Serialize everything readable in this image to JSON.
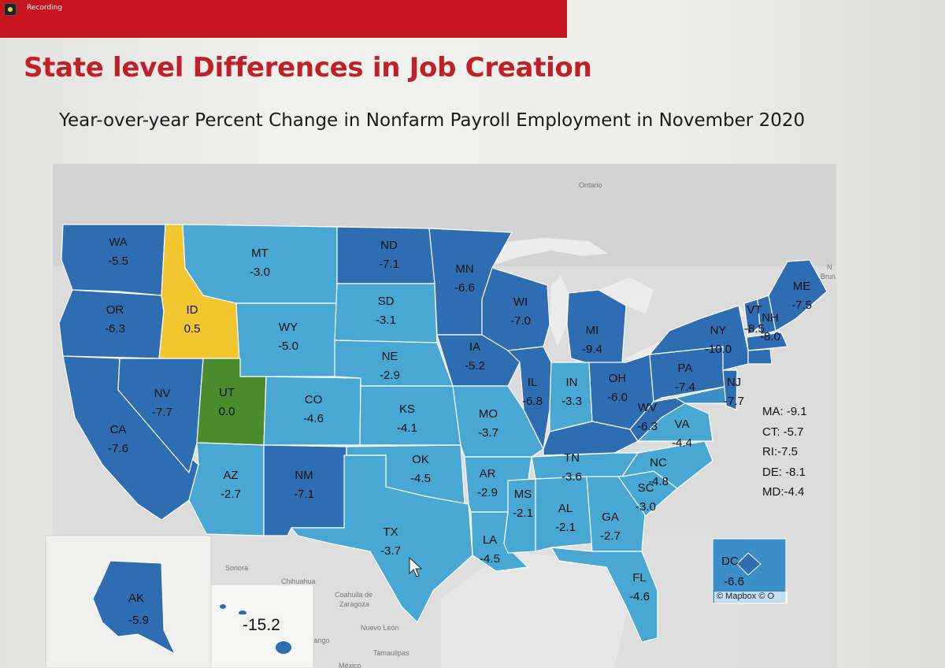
{
  "recording_label": "Recording",
  "title": "State level Differences in Job Creation",
  "subtitle": "Year-over-year Percent Change in Nonfarm Payroll Employment in November 2020",
  "colors": {
    "dark": "#2f6db3",
    "mid": "#3b8ec8",
    "light": "#48a7d3",
    "yellow": "#f2c62f",
    "green": "#4a8b2c",
    "border": "#ffffff"
  },
  "states": [
    {
      "abbr": "WA",
      "value": "-5.5"
    },
    {
      "abbr": "OR",
      "value": "-6.3"
    },
    {
      "abbr": "CA",
      "value": "-7.6"
    },
    {
      "abbr": "NV",
      "value": "-7.7"
    },
    {
      "abbr": "ID",
      "value": "0.5"
    },
    {
      "abbr": "MT",
      "value": "-3.0"
    },
    {
      "abbr": "WY",
      "value": "-5.0"
    },
    {
      "abbr": "UT",
      "value": "0.0"
    },
    {
      "abbr": "CO",
      "value": "-4.6"
    },
    {
      "abbr": "AZ",
      "value": "-2.7"
    },
    {
      "abbr": "NM",
      "value": "-7.1"
    },
    {
      "abbr": "ND",
      "value": "-7.1"
    },
    {
      "abbr": "SD",
      "value": "-3.1"
    },
    {
      "abbr": "NE",
      "value": "-2.9"
    },
    {
      "abbr": "KS",
      "value": "-4.1"
    },
    {
      "abbr": "OK",
      "value": "-4.5"
    },
    {
      "abbr": "TX",
      "value": "-3.7"
    },
    {
      "abbr": "MN",
      "value": "-6.6"
    },
    {
      "abbr": "IA",
      "value": "-5.2"
    },
    {
      "abbr": "MO",
      "value": "-3.7"
    },
    {
      "abbr": "AR",
      "value": "-2.9"
    },
    {
      "abbr": "LA",
      "value": "-4.5"
    },
    {
      "abbr": "WI",
      "value": "-7.0"
    },
    {
      "abbr": "IL",
      "value": "-6.8"
    },
    {
      "abbr": "MS",
      "value": "-2.1"
    },
    {
      "abbr": "MI",
      "value": "-9.4"
    },
    {
      "abbr": "IN",
      "value": "-3.3"
    },
    {
      "abbr": "OH",
      "value": "-6.0"
    },
    {
      "abbr": "TN",
      "value": "-3.6"
    },
    {
      "abbr": "AL",
      "value": "-2.1"
    },
    {
      "abbr": "GA",
      "value": "-2.7"
    },
    {
      "abbr": "FL",
      "value": "-4.6"
    },
    {
      "abbr": "SC",
      "value": "-3.0"
    },
    {
      "abbr": "NC",
      "value": "-4.8"
    },
    {
      "abbr": "VA",
      "value": "-4.4"
    },
    {
      "abbr": "WV",
      "value": "-6.3"
    },
    {
      "abbr": "PA",
      "value": "-7.4"
    },
    {
      "abbr": "NY",
      "value": "-10.0"
    },
    {
      "abbr": "NJ",
      "value": "-7.7"
    },
    {
      "abbr": "VT",
      "value": "-8.5"
    },
    {
      "abbr": "NH",
      "value": "-8.0"
    },
    {
      "abbr": "ME",
      "value": "-7.5"
    },
    {
      "abbr": "AK",
      "value": "-5.9"
    },
    {
      "abbr": "DC",
      "value": "-6.6"
    }
  ],
  "hawaii_value": "-15.2",
  "side_note": [
    "MA: -9.1",
    "CT: -5.7",
    "RI:-7.5",
    "DE: -8.1",
    "MD:-4.4"
  ],
  "geo_labels": {
    "ontario": "Ontario",
    "sonora": "Sonora",
    "chihuahua": "Chihuahua",
    "coahuila": "Coahuila de",
    "zaragoza": "Zaragoza",
    "nuevo_leon": "Nuevo León",
    "tamaulipas": "Tamaulipas",
    "mexico": "México",
    "durango": "Durango",
    "n_edge": "N",
    "brun_edge": "Brun"
  },
  "attribution": "© Mapbox © O"
}
